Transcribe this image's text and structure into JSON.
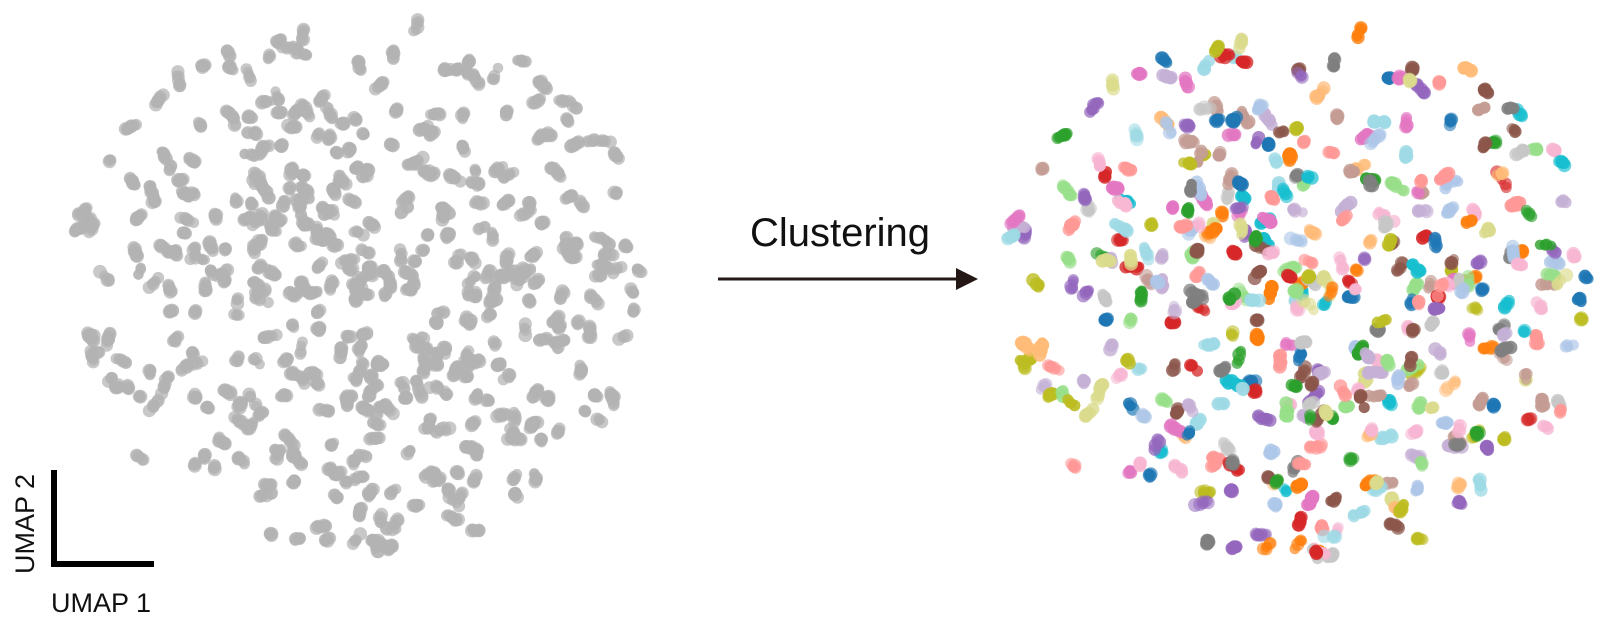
{
  "arrow": {
    "label": "Clustering"
  },
  "axes": {
    "xlabel": "UMAP 1",
    "ylabel": "UMAP 2"
  },
  "colors": {
    "unclustered": "#b3b3b3",
    "arrow": "#231815",
    "axis": "#000000",
    "palette": [
      "#1f77b4",
      "#aec7e8",
      "#ff7f0e",
      "#ffbb78",
      "#2ca02c",
      "#98df8a",
      "#d62728",
      "#ff9896",
      "#9467bd",
      "#c5b0d5",
      "#8c564b",
      "#c49c94",
      "#e377c2",
      "#f7b6d2",
      "#7f7f7f",
      "#c7c7c7",
      "#bcbd22",
      "#dbdb8d",
      "#17becf",
      "#9edae5"
    ]
  },
  "panels": [
    {
      "id": "before",
      "style": "uniform-gray"
    },
    {
      "id": "after",
      "style": "cluster-colored"
    }
  ]
}
